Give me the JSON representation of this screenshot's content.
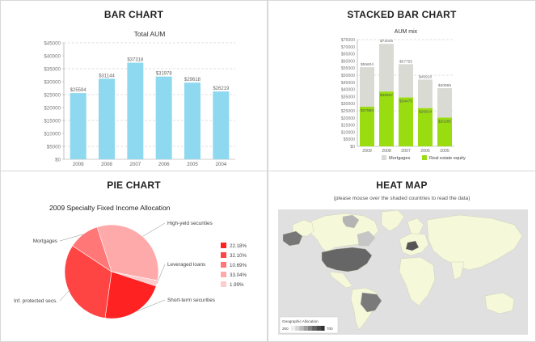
{
  "panels": {
    "bar": {
      "title": "BAR CHART",
      "chart_data": {
        "type": "bar",
        "title": "Total AUM",
        "categories": [
          "2009",
          "2008",
          "2007",
          "2006",
          "2005",
          "2004"
        ],
        "values": [
          25594,
          31144,
          37318,
          31978,
          29618,
          26219
        ],
        "value_labels": [
          "$25594",
          "$31144",
          "$37318",
          "$31978",
          "$29618",
          "$26219"
        ],
        "ylim": [
          0,
          45000
        ],
        "yticks": [
          0,
          5000,
          10000,
          15000,
          20000,
          25000,
          30000,
          35000,
          40000,
          45000
        ],
        "ytick_labels": [
          "$0",
          "$5000",
          "$10000",
          "$15000",
          "$20000",
          "$25000",
          "$30000",
          "$35000",
          "$40000",
          "$45000"
        ],
        "color": "#8ed8f0",
        "grid": "dashed horizontal"
      }
    },
    "stacked": {
      "title": "STACKED BAR CHART",
      "chart_data": {
        "type": "bar",
        "stacked": true,
        "title": "AUM mix",
        "categories": [
          "2009",
          "2008",
          "2007",
          "2006",
          "2005"
        ],
        "series": [
          {
            "name": "Real estate equity",
            "color": "#99dd11",
            "values": [
              27860,
              38557,
              34475,
              26914,
              20285
            ],
            "labels": [
              "$27860",
              "$38557",
              "$34475",
              "$26914",
              "$20285"
            ]
          },
          {
            "name": "Mortgages",
            "color": "#dadad4",
            "values": [
              27744,
              33468,
              23280,
              20004,
              20601
            ],
            "labels": [
              "",
              "",
              "",
              "",
              ""
            ]
          }
        ],
        "total_labels": [
          "$55604",
          "$72025",
          "$57755",
          "$46918",
          "$40886"
        ],
        "ylim": [
          0,
          75000
        ],
        "yticks": [
          0,
          5000,
          10000,
          15000,
          20000,
          25000,
          30000,
          35000,
          40000,
          45000,
          50000,
          55000,
          60000,
          65000,
          70000,
          75000
        ],
        "ytick_labels": [
          "$0",
          "$5000",
          "$10000",
          "$15000",
          "$20000",
          "$25000",
          "$30000",
          "$35000",
          "$40000",
          "$45000",
          "$50000",
          "$55000",
          "$60000",
          "$65000",
          "$70000",
          "$75000"
        ],
        "legend_position": "bottom",
        "legend_order": [
          "Mortgages",
          "Real estate equity"
        ]
      }
    },
    "pie": {
      "title": "PIE CHART",
      "chart_data": {
        "type": "pie",
        "title": "2009 Specialty Fixed Income Allocation",
        "slices": [
          {
            "name": "High-yeld securities",
            "value": 33.04,
            "color": "#ffaaaa"
          },
          {
            "name": "Leveraged loans",
            "value": 1.99,
            "color": "#ffcccc"
          },
          {
            "name": "Short-term securities",
            "value": 22.18,
            "color": "#ff2222"
          },
          {
            "name": "Inf. protected secs.",
            "value": 32.1,
            "color": "#ff4444"
          },
          {
            "name": "Mortgages",
            "value": 10.69,
            "color": "#ff7777"
          }
        ],
        "legend": [
          {
            "label": "22.18%",
            "color": "#ff2222"
          },
          {
            "label": "32.10%",
            "color": "#ff4444"
          },
          {
            "label": "10.69%",
            "color": "#ff7777"
          },
          {
            "label": "33.04%",
            "color": "#ffaaaa"
          },
          {
            "label": "1.99%",
            "color": "#ffcccc"
          }
        ]
      }
    },
    "heat": {
      "title": "HEAT MAP",
      "subtitle": "(please mouse over the shaded countries to read the data)",
      "legend_title": "Geographic Allocation",
      "legend_min": "200",
      "legend_max": "700",
      "land_color": "#f6f8da",
      "ocean_color": "#e0e0e0"
    }
  }
}
